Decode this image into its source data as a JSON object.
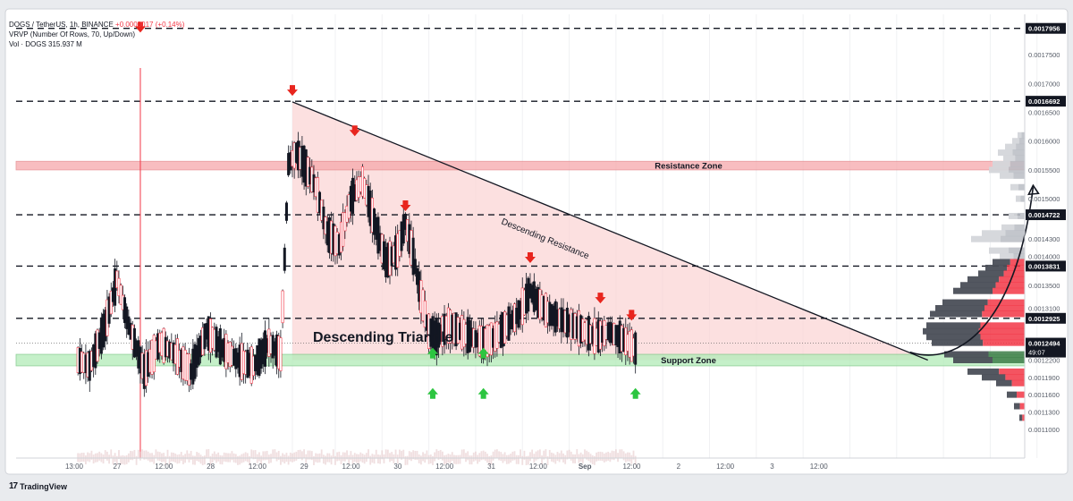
{
  "header": {
    "symbol": "DOGS / TetherUS, 1h, BINANCE",
    "change": "+0.0000017 (+0.14%)",
    "indicator": "VRVP (Number Of Rows, 70, Up/Down)",
    "volume": "Vol · DOGS 315.937 M"
  },
  "brand": {
    "logo": "17",
    "name": "TradingView"
  },
  "colors": {
    "bull": "#ffffff",
    "bear": "#131722",
    "resistance": "#f6a8ab",
    "support": "#b2ecb8",
    "triangle": "#fbd3d3",
    "arrow_down": "#e8251e",
    "arrow_up": "#2cc540",
    "accent": "#f23645"
  },
  "chart_data": {
    "type": "candlestick",
    "currency": "USDT",
    "ylim": [
      0.00105,
      0.00182
    ],
    "x_ticks": [
      {
        "label": "13:00",
        "t": 0
      },
      {
        "label": "27",
        "t": 11
      },
      {
        "label": "12:00",
        "t": 23
      },
      {
        "label": "28",
        "t": 35
      },
      {
        "label": "12:00",
        "t": 47
      },
      {
        "label": "29",
        "t": 59
      },
      {
        "label": "12:00",
        "t": 71
      },
      {
        "label": "30",
        "t": 83
      },
      {
        "label": "12:00",
        "t": 95
      },
      {
        "label": "31",
        "t": 107
      },
      {
        "label": "12:00",
        "t": 119
      },
      {
        "label": "Sep",
        "t": 131
      },
      {
        "label": "12:00",
        "t": 143
      },
      {
        "label": "2",
        "t": 155
      },
      {
        "label": "12:00",
        "t": 167
      },
      {
        "label": "3",
        "t": 179
      },
      {
        "label": "12:00",
        "t": 191
      }
    ],
    "y_ticks": [
      "0.0017500",
      "0.0017000",
      "0.0016500",
      "0.0016000",
      "0.0015500",
      "0.0015000",
      "0.0014300",
      "0.0014000",
      "0.0013500",
      "0.0013100",
      "0.0012200",
      "0.0011900",
      "0.0011600",
      "0.0011300",
      "0.0011000"
    ],
    "y_tick_values": [
      0.00175,
      0.0017,
      0.00165,
      0.0016,
      0.00155,
      0.0015,
      0.00143,
      0.0014,
      0.00135,
      0.00131,
      0.00122,
      0.00119,
      0.00116,
      0.00113,
      0.0011
    ],
    "price_levels": [
      {
        "label": "0.0017956",
        "value": 0.0017956
      },
      {
        "label": "0.0016692",
        "value": 0.0016692
      },
      {
        "label": "0.0014722",
        "value": 0.0014722
      },
      {
        "label": "0.0013831",
        "value": 0.0013831
      },
      {
        "label": "0.0012925",
        "value": 0.0012925
      }
    ],
    "current_price": {
      "label": "0.0012494",
      "value": 0.0012494,
      "countdown": "49:07"
    },
    "zones": [
      {
        "name": "Resistance Zone",
        "top": 0.001565,
        "bottom": 0.00155
      },
      {
        "name": "Support Zone",
        "top": 0.00123,
        "bottom": 0.00121
      }
    ],
    "pattern": {
      "name": "Descending Triangle",
      "resistance_label": "Descending Resistance",
      "resistance_line": [
        [
          0,
          0.001668
        ],
        [
          163,
          0.00122
        ]
      ],
      "support_level": 0.00122,
      "triangle": [
        [
          0,
          0.001668
        ],
        [
          163,
          0.00122
        ],
        [
          0,
          0.00122
        ]
      ]
    },
    "projection": [
      [
        163,
        0.00124
      ],
      [
        190,
        0.00152
      ]
    ],
    "down_arrows": [
      {
        "t": -39,
        "p": 0.00179
      },
      {
        "t": 0,
        "p": 0.00168
      },
      {
        "t": 16,
        "p": 0.00161
      },
      {
        "t": 29,
        "p": 0.00148
      },
      {
        "t": 61,
        "p": 0.00139
      },
      {
        "t": 79,
        "p": 0.00132
      },
      {
        "t": 87,
        "p": 0.00129
      }
    ],
    "up_arrows": [
      {
        "t": 36,
        "p": 0.00124
      },
      {
        "t": 49,
        "p": 0.00124
      }
    ],
    "support_tests": [
      {
        "t": 36
      },
      {
        "t": 49
      },
      {
        "t": 88
      }
    ]
  }
}
